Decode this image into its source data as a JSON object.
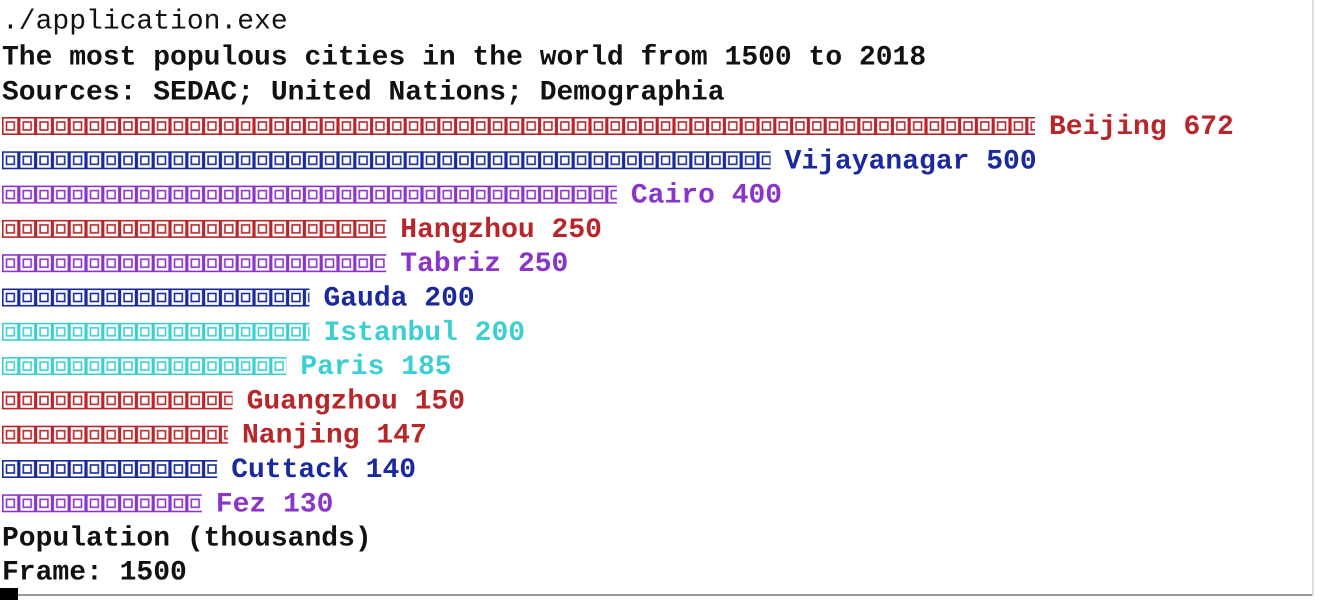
{
  "command": "./application.exe",
  "chart_data": {
    "type": "bar",
    "orientation": "horizontal",
    "title": "The most populous cities in the world from 1500 to 2018",
    "subtitle": "Sources: SEDAC; United Nations; Demographia",
    "categories": [
      "Beijing",
      "Vijayanagar",
      "Cairo",
      "Hangzhou",
      "Tabriz",
      "Gauda",
      "Istanbul",
      "Paris",
      "Guangzhou",
      "Nanjing",
      "Cuttack",
      "Fez"
    ],
    "values": [
      672,
      500,
      400,
      250,
      250,
      200,
      200,
      185,
      150,
      147,
      140,
      130
    ],
    "colors": [
      "#b8262a",
      "#1a2a9c",
      "#8a34c8",
      "#b8262a",
      "#8a34c8",
      "#1a2a9c",
      "#3ccfd2",
      "#3ccfd2",
      "#b8262a",
      "#b8262a",
      "#1a2a9c",
      "#8a34c8"
    ],
    "x_label": "Population (thousands)",
    "frame_label": "Frame: 1500"
  }
}
